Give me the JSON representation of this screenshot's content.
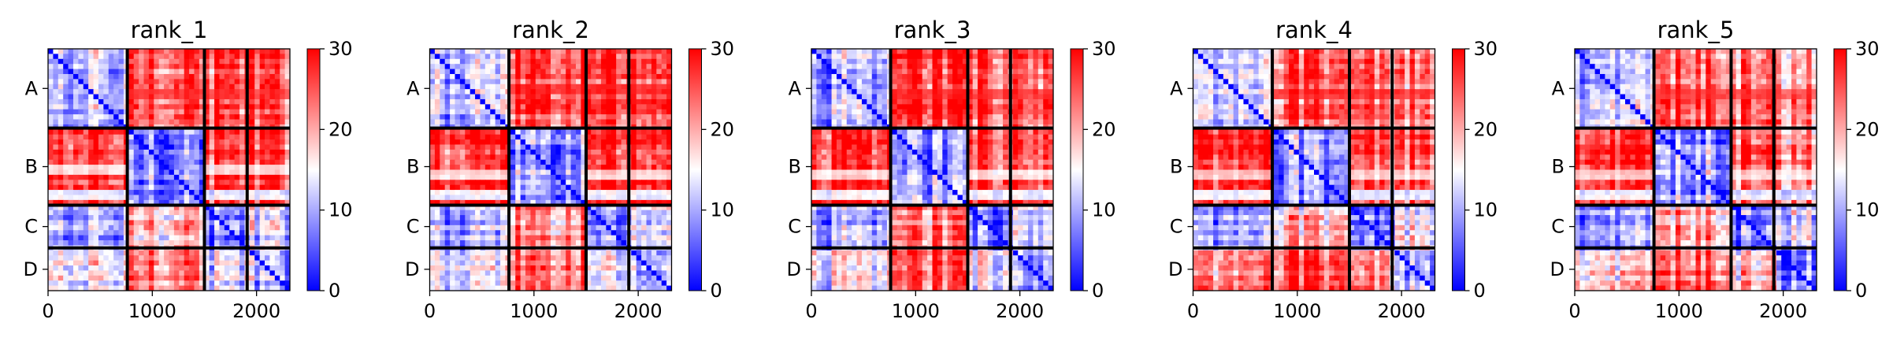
{
  "chart_data": {
    "type": "heatmap",
    "colormap": [
      "#0000ff",
      "#ffffff",
      "#ff0000"
    ],
    "block_labels": [
      "A",
      "B",
      "C",
      "D"
    ],
    "block_boundaries": [
      0,
      760,
      1500,
      1910,
      2320
    ],
    "x_ticks": [
      0,
      1000,
      2000
    ],
    "xlim": [
      0,
      2320
    ],
    "colorbar": {
      "min": 0,
      "max": 30,
      "ticks": [
        0,
        10,
        20,
        30
      ]
    },
    "panels": [
      {
        "title": "rank_1",
        "block_means": [
          [
            10,
            26,
            25,
            24
          ],
          [
            26,
            9,
            26,
            26
          ],
          [
            9,
            20,
            7,
            12
          ],
          [
            14,
            24,
            13,
            10
          ]
        ],
        "bands": [
          {
            "block": 0,
            "rows": [
              0.48,
              0.62
            ],
            "value": 28
          },
          {
            "block": 1,
            "rows": [
              0.45,
              0.6
            ],
            "value": 12
          },
          {
            "block": 1,
            "rows": [
              0.82,
              0.92
            ],
            "value": 8
          }
        ]
      },
      {
        "title": "rank_2",
        "block_means": [
          [
            10,
            26,
            25,
            24
          ],
          [
            26,
            9,
            26,
            26
          ],
          [
            9,
            22,
            7,
            12
          ],
          [
            14,
            25,
            14,
            10
          ]
        ],
        "bands": [
          {
            "block": 0,
            "rows": [
              0.45,
              0.6
            ],
            "value": 28
          },
          {
            "block": 1,
            "rows": [
              0.55,
              0.7
            ],
            "value": 12
          },
          {
            "block": 1,
            "rows": [
              0.8,
              0.9
            ],
            "value": 8
          }
        ]
      },
      {
        "title": "rank_3",
        "block_means": [
          [
            10,
            27,
            26,
            25
          ],
          [
            27,
            9,
            27,
            26
          ],
          [
            9,
            22,
            8,
            13
          ],
          [
            15,
            25,
            16,
            10
          ]
        ],
        "bands": [
          {
            "block": 0,
            "rows": [
              0.5,
              0.62
            ],
            "value": 28
          },
          {
            "block": 1,
            "rows": [
              0.55,
              0.7
            ],
            "value": 12
          },
          {
            "block": 1,
            "rows": [
              0.82,
              0.92
            ],
            "value": 8
          }
        ]
      },
      {
        "title": "rank_4",
        "block_means": [
          [
            10,
            25,
            23,
            21
          ],
          [
            26,
            10,
            25,
            24
          ],
          [
            8,
            20,
            6,
            14
          ],
          [
            20,
            26,
            21,
            8
          ]
        ],
        "bands": [
          {
            "block": 0,
            "rows": [
              0.5,
              0.62
            ],
            "value": 28
          },
          {
            "block": 1,
            "rows": [
              0.55,
              0.7
            ],
            "value": 14
          },
          {
            "block": 1,
            "rows": [
              0.82,
              0.92
            ],
            "value": 8
          }
        ]
      },
      {
        "title": "rank_5",
        "block_means": [
          [
            11,
            26,
            24,
            22
          ],
          [
            26,
            10,
            25,
            23
          ],
          [
            8,
            21,
            7,
            14
          ],
          [
            17,
            26,
            19,
            9
          ]
        ],
        "bands": [
          {
            "block": 0,
            "rows": [
              0.5,
              0.62
            ],
            "value": 28
          },
          {
            "block": 1,
            "rows": [
              0.55,
              0.7
            ],
            "value": 13
          },
          {
            "block": 1,
            "rows": [
              0.82,
              0.92
            ],
            "value": 8
          }
        ]
      }
    ]
  }
}
